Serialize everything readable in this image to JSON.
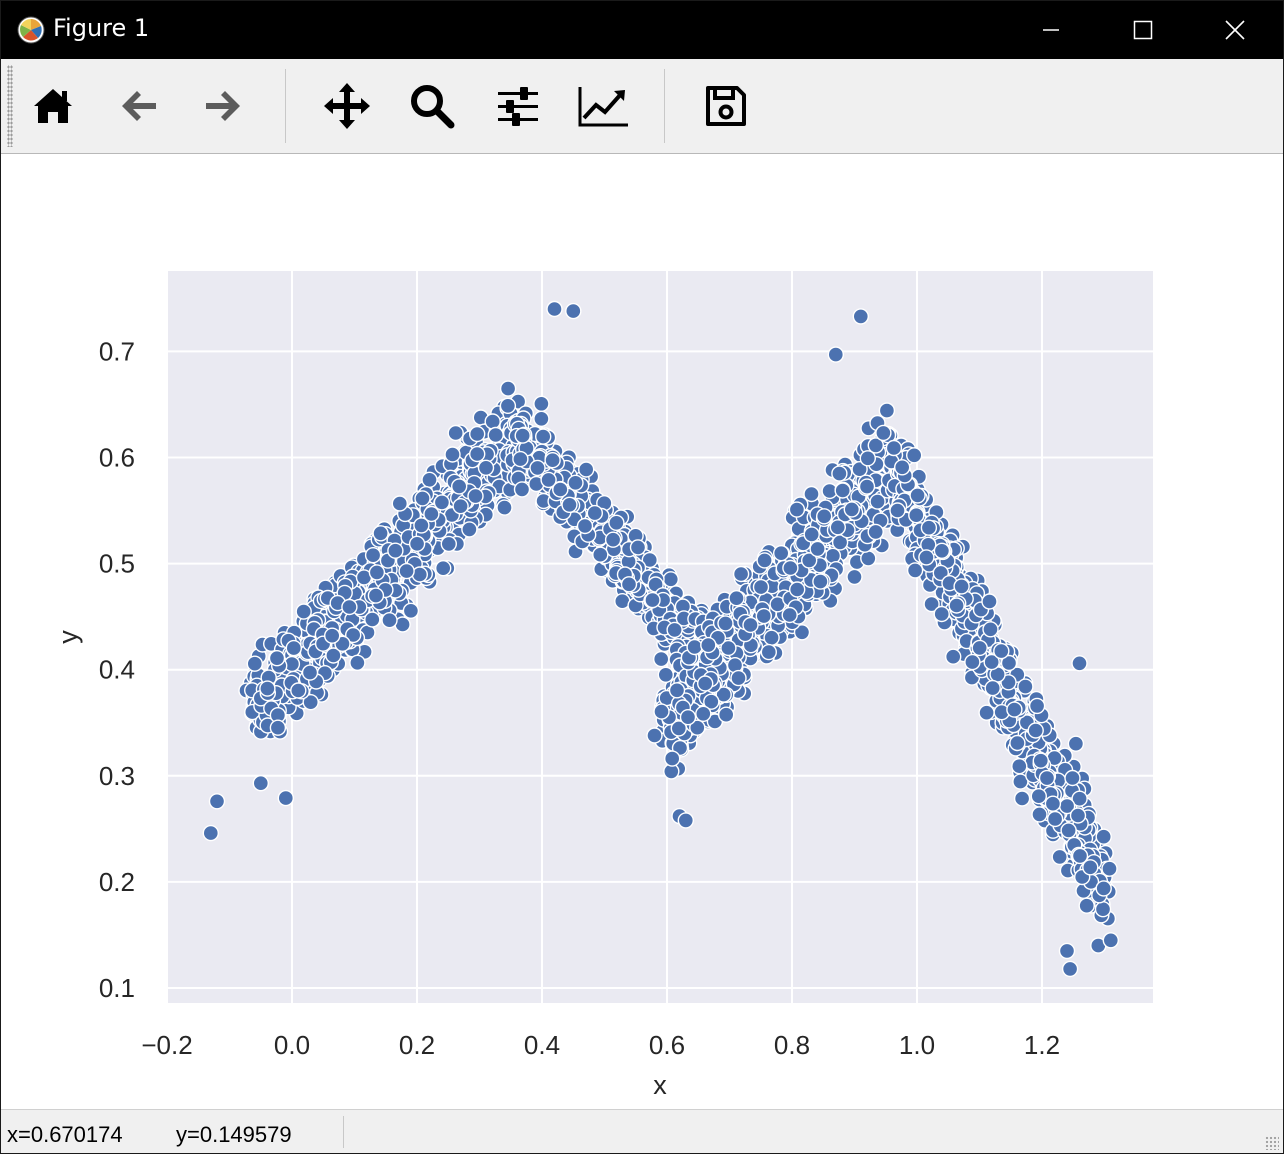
{
  "window": {
    "title": "Figure 1",
    "minimize_icon": "minimize-icon",
    "maximize_icon": "maximize-icon",
    "close_icon": "close-icon"
  },
  "toolbar": {
    "buttons": [
      {
        "name": "home-button",
        "icon": "home-icon"
      },
      {
        "name": "back-button",
        "icon": "back-arrow-icon"
      },
      {
        "name": "forward-button",
        "icon": "forward-arrow-icon"
      },
      {
        "name": "pan-button",
        "icon": "move-icon"
      },
      {
        "name": "zoom-button",
        "icon": "magnifier-icon"
      },
      {
        "name": "configure-subplots-button",
        "icon": "sliders-icon"
      },
      {
        "name": "edit-axis-button",
        "icon": "line-chart-icon"
      },
      {
        "name": "save-button",
        "icon": "floppy-disk-icon"
      }
    ]
  },
  "status": {
    "x_readout": "x=0.670174",
    "y_readout": "y=0.149579"
  },
  "colors": {
    "plot_background": "#eaeaf2",
    "grid": "#ffffff",
    "marker": "#4c72b0",
    "marker_edge": "#ffffff"
  },
  "chart_data": {
    "type": "scatter",
    "title": "",
    "xlabel": "x",
    "ylabel": "y",
    "xlim": [
      -0.2,
      1.38
    ],
    "ylim": [
      0.085,
      0.775
    ],
    "xticks": [
      "−0.2",
      "0.0",
      "0.2",
      "0.4",
      "0.6",
      "0.8",
      "1.0",
      "1.2"
    ],
    "xtick_values": [
      -0.2,
      0.0,
      0.2,
      0.4,
      0.6,
      0.8,
      1.0,
      1.2
    ],
    "yticks": [
      "0.1",
      "0.2",
      "0.3",
      "0.4",
      "0.5",
      "0.6",
      "0.7"
    ],
    "ytick_values": [
      0.1,
      0.2,
      0.3,
      0.4,
      0.5,
      0.6,
      0.7
    ],
    "grid": true,
    "marker_color": "#4c72b0",
    "outlier_points": [
      [
        -0.13,
        0.246
      ],
      [
        -0.12,
        0.276
      ],
      [
        -0.05,
        0.293
      ],
      [
        -0.01,
        0.279
      ],
      [
        0.42,
        0.74
      ],
      [
        0.45,
        0.738
      ],
      [
        0.91,
        0.733
      ],
      [
        0.87,
        0.697
      ],
      [
        1.245,
        0.118
      ],
      [
        1.24,
        0.135
      ],
      [
        1.29,
        0.14
      ],
      [
        1.31,
        0.145
      ],
      [
        0.62,
        0.262
      ],
      [
        0.63,
        0.258
      ],
      [
        0.58,
        0.338
      ],
      [
        1.26,
        0.406
      ]
    ],
    "dense_trend": [
      {
        "x_range": [
          -0.06,
          0.36
        ],
        "y_start": 0.36,
        "y_end": 0.62,
        "spread": 0.045,
        "n": 900
      },
      {
        "x_range": [
          0.36,
          0.7
        ],
        "y_start": 0.62,
        "y_end": 0.39,
        "spread": 0.035,
        "n": 650
      },
      {
        "x_range": [
          0.6,
          0.96
        ],
        "y_start": 0.36,
        "y_end": 0.59,
        "spread": 0.05,
        "n": 900
      },
      {
        "x_range": [
          0.96,
          1.3
        ],
        "y_start": 0.59,
        "y_end": 0.2,
        "spread": 0.045,
        "n": 850
      }
    ]
  }
}
